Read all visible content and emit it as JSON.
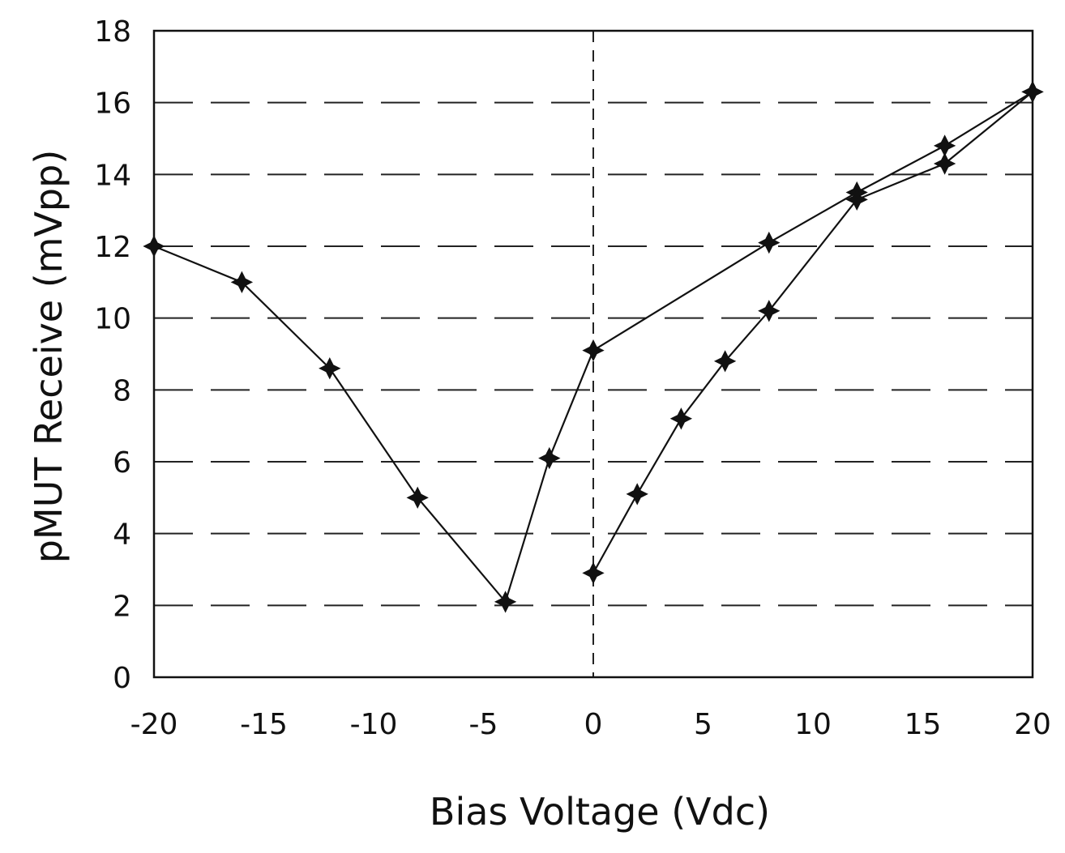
{
  "chart_data": {
    "type": "line",
    "title": "",
    "xlabel": "Bias Voltage (Vdc)",
    "ylabel": "pMUT Receive (mVpp)",
    "xlim": [
      -20,
      20
    ],
    "ylim": [
      0,
      18
    ],
    "x_ticks": [
      -20,
      -15,
      -10,
      -5,
      0,
      5,
      10,
      15,
      20
    ],
    "x_tick_labels": [
      "-20",
      "-15",
      "-10",
      "-5",
      "0",
      "5",
      "10",
      "15",
      "20"
    ],
    "y_ticks": [
      0,
      2,
      4,
      6,
      8,
      10,
      12,
      14,
      16,
      18
    ],
    "y_tick_labels": [
      "0",
      "2",
      "4",
      "6",
      "8",
      "10",
      "12",
      "14",
      "16",
      "18"
    ],
    "grid": true,
    "legend": "none",
    "series": [
      {
        "x": [
          -20,
          -16,
          -12,
          -8,
          -4,
          -2,
          0,
          8,
          12,
          16,
          20
        ],
        "values": [
          12,
          11,
          8.6,
          5,
          2.1,
          6.1,
          9.1,
          12.1,
          13.5,
          14.8,
          16.3
        ]
      },
      {
        "x": [
          0,
          2,
          4,
          6,
          8,
          12,
          16,
          20
        ],
        "values": [
          2.9,
          5.1,
          7.2,
          8.8,
          10.2,
          13.3,
          14.3,
          16.3
        ]
      }
    ]
  }
}
